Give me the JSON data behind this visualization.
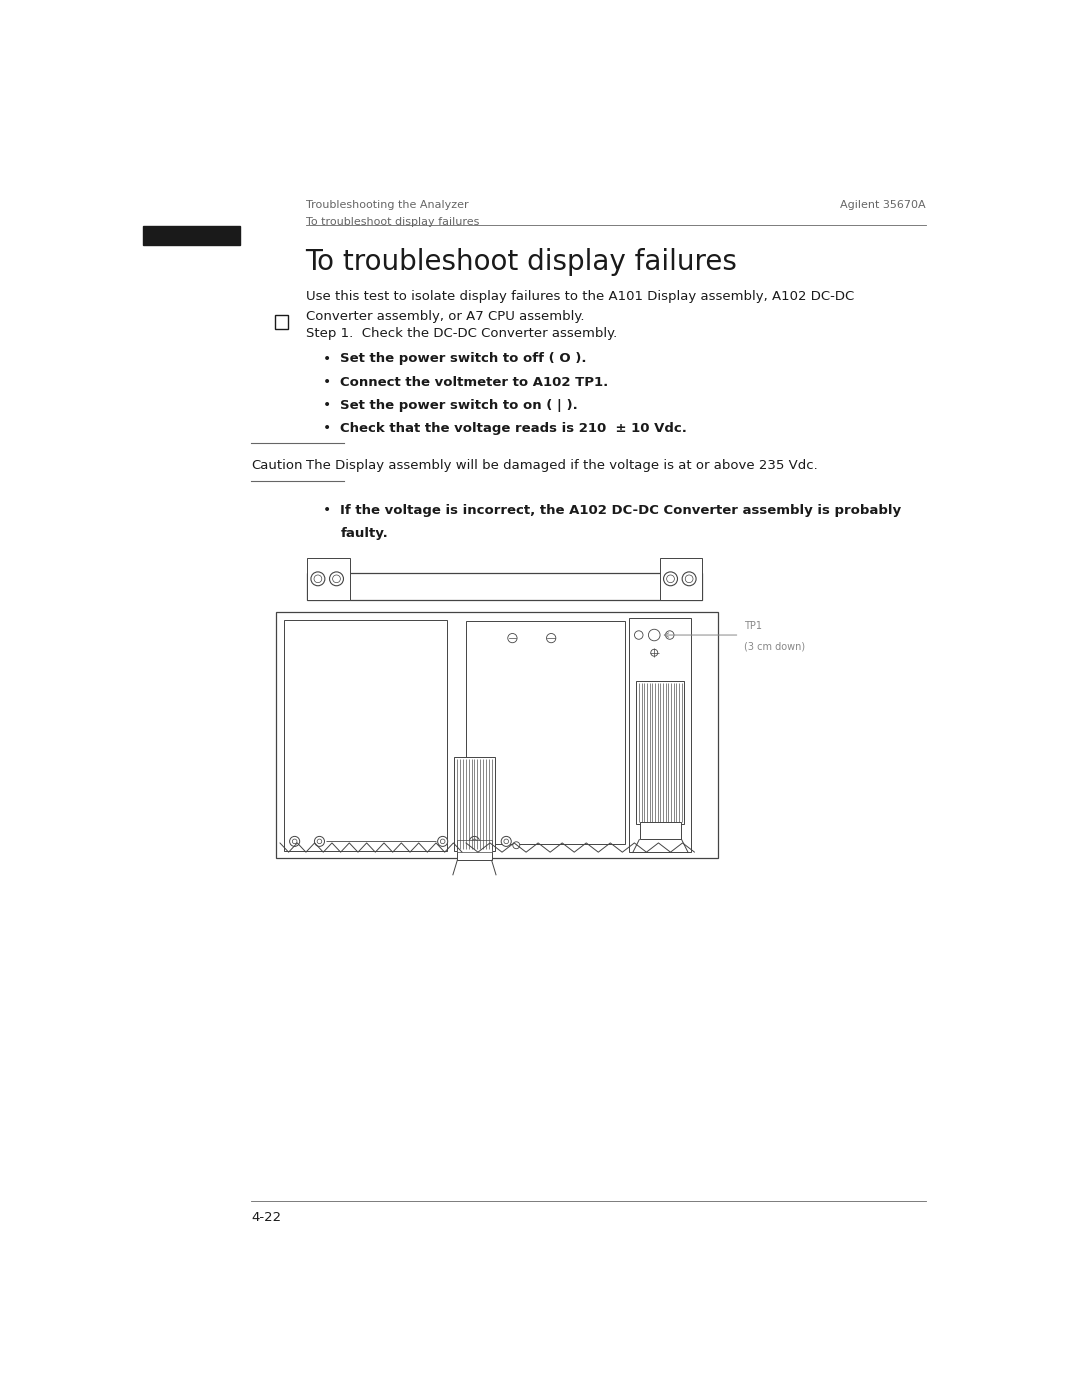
{
  "page_width": 10.8,
  "page_height": 13.97,
  "bg_color": "#ffffff",
  "header_left_line1": "Troubleshooting the Analyzer",
  "header_left_line2": "To troubleshoot display failures",
  "header_right": "Agilent 35670A",
  "section_title": "To troubleshoot display failures",
  "intro_line1": "Use this test to isolate display failures to the A101 Display assembly, A102 DC-DC",
  "intro_line2": "Converter assembly, or A7 CPU assembly.",
  "step1_text": "Step 1.  Check the DC-DC Converter assembly.",
  "bullets": [
    "Set the power switch to off ( O ).",
    "Connect the voltmeter to A102 TP1.",
    "Set the power switch to on ( | ).",
    "Check that the voltage reads is 210  ± 10 Vdc."
  ],
  "caution_label": "Caution",
  "caution_text": "The Display assembly will be damaged if the voltage is at or above 235 Vdc.",
  "result_line1": "If the voltage is incorrect, the A102 DC-DC Converter assembly is probably",
  "result_line2": "faulty.",
  "footer_text": "4-22",
  "tp1_label": "TP1",
  "tp1_label2": "(3 cm down)",
  "text_color": "#1a1a1a",
  "gray_color": "#666666",
  "diagram_color": "#444444",
  "light_gray": "#999999",
  "header_font_size": 8.0,
  "title_font_size": 20,
  "body_font_size": 9.5,
  "bold_font_size": 9.5,
  "caution_font_size": 9.5,
  "footer_font_size": 9.5
}
